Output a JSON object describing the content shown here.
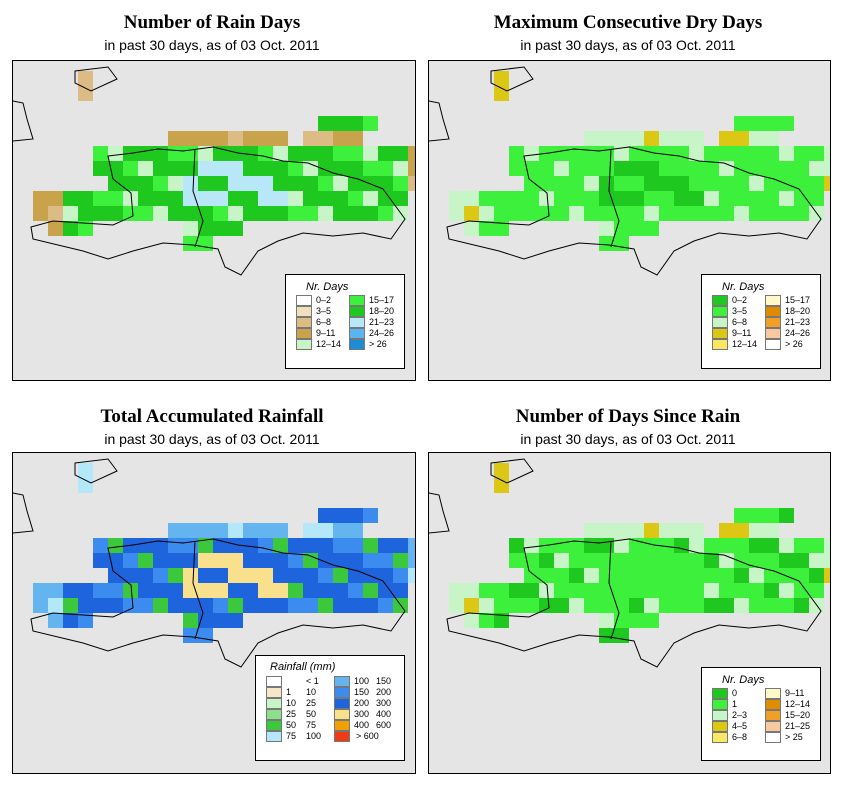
{
  "panels": {
    "rain_days": {
      "title": "Number of Rain Days",
      "subtitle": "in past 30 days, as of  03 Oct. 2011",
      "legend_title": "Nr. Days",
      "legend": [
        {
          "label": "0–2",
          "color": "#ffffff"
        },
        {
          "label": "3–5",
          "color": "#f2e0bc"
        },
        {
          "label": "6–8",
          "color": "#dcbc84"
        },
        {
          "label": "9–11",
          "color": "#c9a34c"
        },
        {
          "label": "12–14",
          "color": "#c8f5c8"
        },
        {
          "label": "15–17",
          "color": "#3cf03c"
        },
        {
          "label": "18–20",
          "color": "#1ec81e"
        },
        {
          "label": "21–23",
          "color": "#b8e8f8"
        },
        {
          "label": "24–26",
          "color": "#5ab4f0"
        },
        {
          "label": "> 26",
          "color": "#1e8cd2"
        }
      ]
    },
    "dry_days": {
      "title": "Maximum Consecutive Dry Days",
      "subtitle": "in past 30 days, as of  03 Oct. 2011",
      "legend_title": "Nr. Days",
      "legend": [
        {
          "label": "0–2",
          "color": "#1ec81e"
        },
        {
          "label": "3–5",
          "color": "#3cf03c"
        },
        {
          "label": "6–8",
          "color": "#c8f5c8"
        },
        {
          "label": "9–11",
          "color": "#dcc814"
        },
        {
          "label": "12–14",
          "color": "#f8e864"
        },
        {
          "label": "15–17",
          "color": "#fff8c8"
        },
        {
          "label": "18–20",
          "color": "#e08c00"
        },
        {
          "label": "21–23",
          "color": "#f0a028"
        },
        {
          "label": "24–26",
          "color": "#f8c8a0"
        },
        {
          "label": "> 26",
          "color": "#ffffff"
        }
      ]
    },
    "rainfall": {
      "title": "Total Accumulated Rainfall",
      "subtitle": "in past 30 days, as of  03 Oct. 2011",
      "legend_title": "Rainfall (mm)",
      "legend": [
        {
          "label_a": "",
          "label_b": "< 1",
          "color": "#ffffff"
        },
        {
          "label_a": "1",
          "label_b": "10",
          "color": "#f8e6c8"
        },
        {
          "label_a": "10",
          "label_b": "25",
          "color": "#c8f5c8"
        },
        {
          "label_a": "25",
          "label_b": "50",
          "color": "#8ce08c"
        },
        {
          "label_a": "50",
          "label_b": "75",
          "color": "#3cc83c"
        },
        {
          "label_a": "75",
          "label_b": "100",
          "color": "#b4e8f8"
        },
        {
          "label_a": "100",
          "label_b": "150",
          "color": "#64b4f0"
        },
        {
          "label_a": "150",
          "label_b": "200",
          "color": "#3c8cf0"
        },
        {
          "label_a": "200",
          "label_b": "300",
          "color": "#1e64dc"
        },
        {
          "label_a": "300",
          "label_b": "400",
          "color": "#f8e08c"
        },
        {
          "label_a": "400",
          "label_b": "600",
          "color": "#f0a000"
        },
        {
          "label_a": "",
          "label_b": "> 600",
          "color": "#f03c14"
        }
      ]
    },
    "since_rain": {
      "title": "Number of Days Since Rain",
      "subtitle": "in past 30 days, as of  03 Oct. 2011",
      "legend_title": "Nr. Days",
      "legend": [
        {
          "label": "0",
          "color": "#1ec81e"
        },
        {
          "label": "1",
          "color": "#3cf03c"
        },
        {
          "label": "2–3",
          "color": "#c8f5c8"
        },
        {
          "label": "4–5",
          "color": "#dcc814"
        },
        {
          "label": "6–8",
          "color": "#f8e864"
        },
        {
          "label": "9–11",
          "color": "#fff8c8"
        },
        {
          "label": "12–14",
          "color": "#e08c00"
        },
        {
          "label": "15–20",
          "color": "#f0a028"
        },
        {
          "label": "21–25",
          "color": "#f8c8a0"
        },
        {
          "label": "> 25",
          "color": "#ffffff"
        }
      ]
    }
  }
}
